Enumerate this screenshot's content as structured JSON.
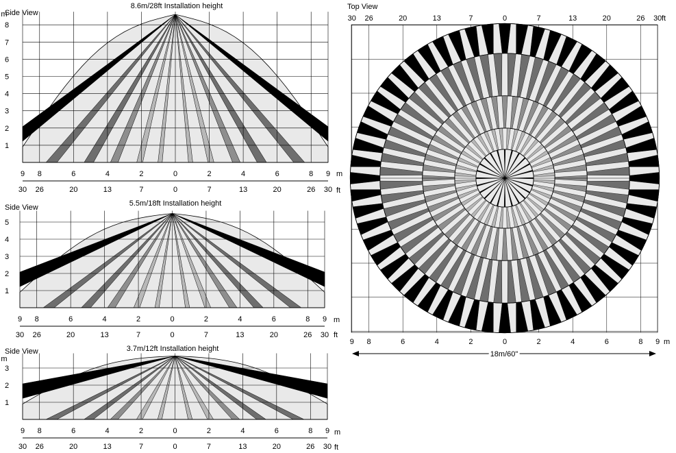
{
  "colors": {
    "background": "#ffffff",
    "line": "#000000",
    "coverage_fill": "#e9e9e9",
    "far_beam": "#000000",
    "mid_beam": "#6e6e6e",
    "mid2_beam": "#8e8e8e",
    "near_beam": "#b8b8b8"
  },
  "side_views": [
    {
      "label": "Side View",
      "title": "8.6m/28ft Installation height",
      "unit_m": "m",
      "unit_ft": "ft",
      "height_m": 8.6,
      "y_ticks": [
        "1",
        "2",
        "3",
        "4",
        "5",
        "6",
        "7",
        "8"
      ],
      "x_ticks_m": [
        "9",
        "8",
        "6",
        "4",
        "2",
        "0",
        "2",
        "4",
        "6",
        "8",
        "9"
      ],
      "x_ticks_ft": [
        "30",
        "26",
        "20",
        "13",
        "7",
        "0",
        "7",
        "13",
        "20",
        "26",
        "30"
      ]
    },
    {
      "label": "Side View",
      "title": "5.5m/18ft Installation height",
      "unit_m": "m",
      "unit_ft": "ft",
      "height_m": 5.5,
      "y_ticks": [
        "1",
        "2",
        "3",
        "4",
        "5"
      ],
      "x_ticks_m": [
        "9",
        "8",
        "6",
        "4",
        "2",
        "0",
        "2",
        "4",
        "6",
        "8",
        "9"
      ],
      "x_ticks_ft": [
        "30",
        "26",
        "20",
        "13",
        "7",
        "0",
        "7",
        "13",
        "20",
        "26",
        "30"
      ]
    },
    {
      "label": "Side View",
      "title": "3.7m/12ft Installation height",
      "unit_m": "m",
      "unit_ft": "ft",
      "height_m": 3.7,
      "y_ticks": [
        "1",
        "2",
        "3"
      ],
      "x_ticks_m": [
        "9",
        "8",
        "6",
        "4",
        "2",
        "0",
        "2",
        "4",
        "6",
        "8",
        "9"
      ],
      "x_ticks_ft": [
        "30",
        "26",
        "20",
        "13",
        "7",
        "0",
        "7",
        "13",
        "20",
        "26",
        "30"
      ]
    }
  ],
  "top_view": {
    "label": "Top View",
    "unit_m": "m",
    "unit_ft": "ft",
    "top_ticks_ft": [
      "30",
      "26",
      "20",
      "13",
      "7",
      "0",
      "7",
      "13",
      "20",
      "26",
      "30"
    ],
    "bottom_ticks_m": [
      "9",
      "8",
      "6",
      "4",
      "2",
      "0",
      "2",
      "4",
      "6",
      "8",
      "9"
    ],
    "span_label": "18m/60\""
  }
}
